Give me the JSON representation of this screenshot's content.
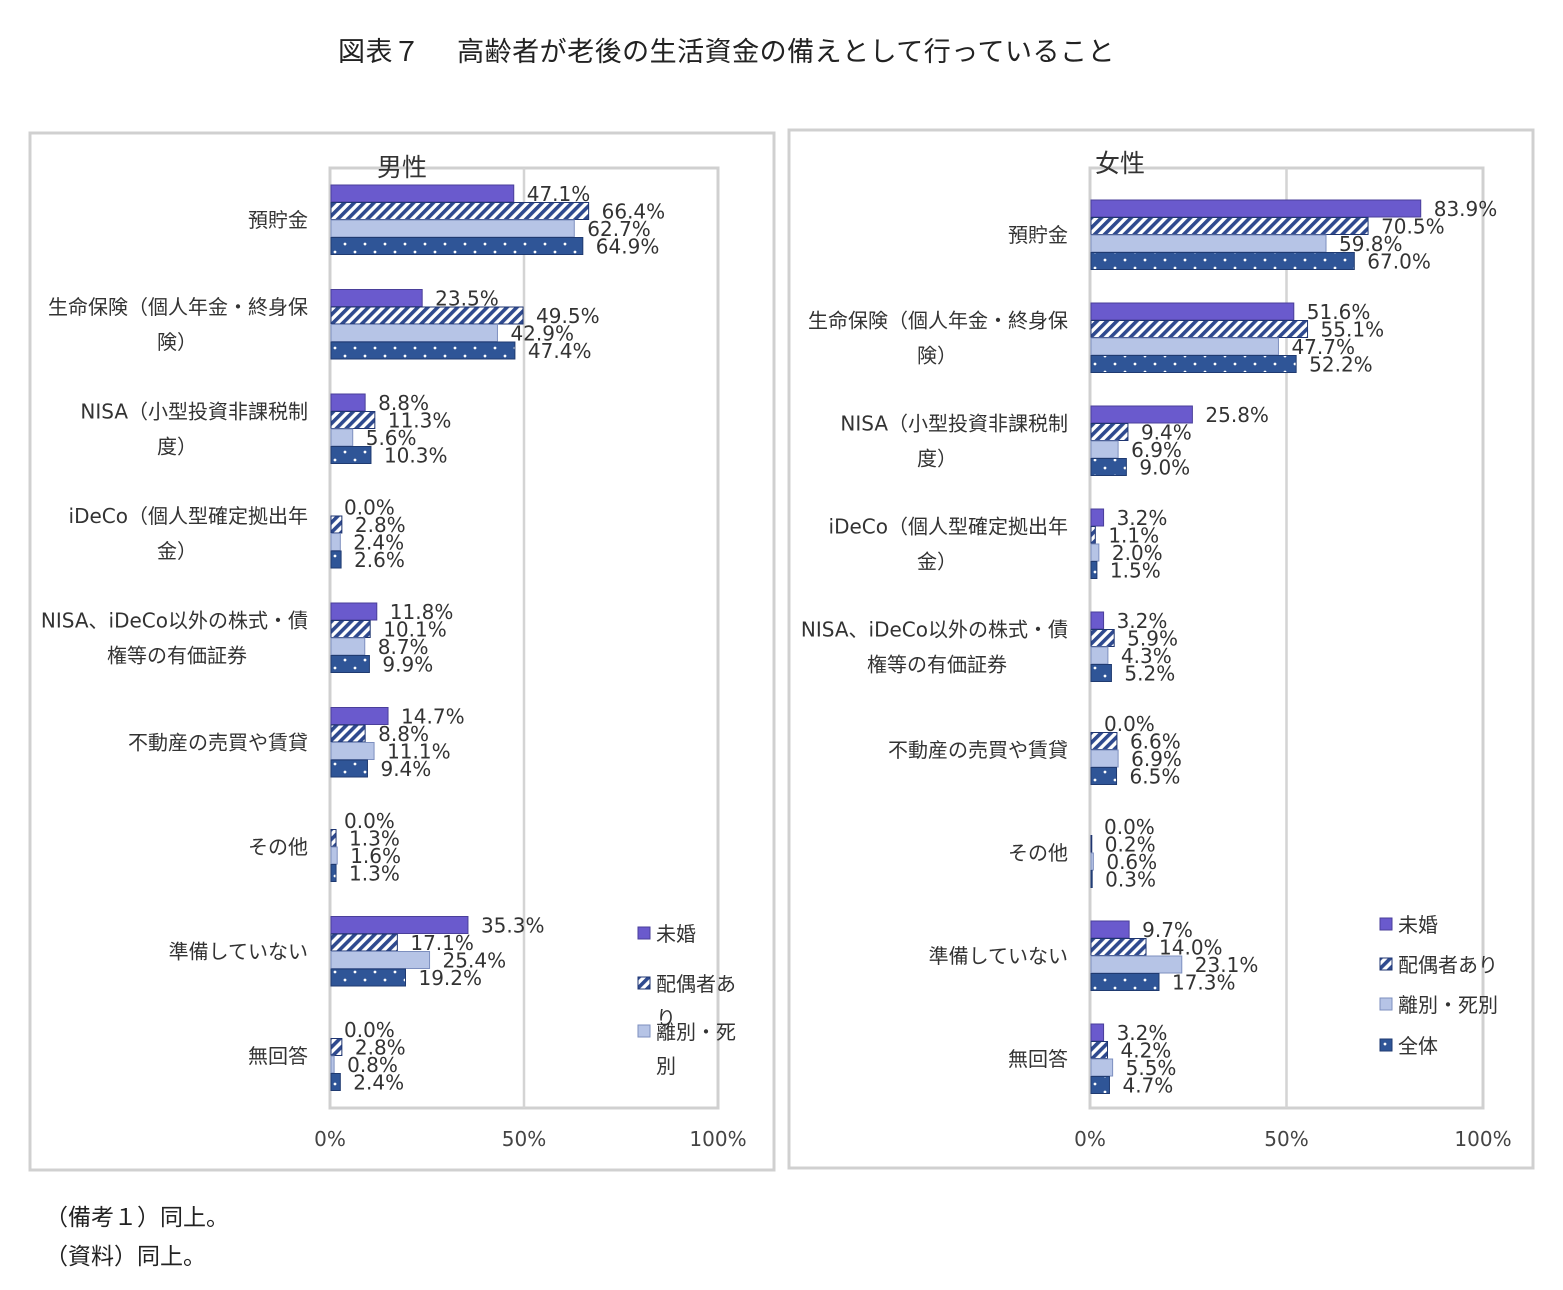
{
  "figure": {
    "title": "図表７　 高齢者が老後の生活資金の備えとして行っていること",
    "notes": [
      "（備考１）同上。",
      "（資料）同上。"
    ]
  },
  "colors": {
    "未婚": "#6a5acd",
    "配偶者あり": "#2f4a8f",
    "離別・死別": "#b6c4e6",
    "全体": "#2f5597",
    "grid": "#d4d4d4",
    "frame": "#d0d0d0"
  },
  "chart_data": [
    {
      "type": "bar",
      "orientation": "horizontal",
      "title": "男性",
      "categories": [
        "預貯金",
        "生命保険（個人年金・終身保険）",
        "NISA（小型投資非課税制度）",
        "iDeCo（個人型確定拠出年金）",
        "NISA、iDeCo以外の株式・債権等の有価証券",
        "不動産の売買や賃貸",
        "その他",
        "準備していない",
        "無回答"
      ],
      "category_lines": [
        [
          "預貯金"
        ],
        [
          "生命保険（個人年金・終身保",
          "険）"
        ],
        [
          "NISA（小型投資非課税制",
          "度）"
        ],
        [
          "iDeCo（個人型確定拠出年",
          "金）"
        ],
        [
          "NISA、iDeCo以外の株式・債",
          "権等の有価証券"
        ],
        [
          "不動産の売買や賃貸"
        ],
        [
          "その他"
        ],
        [
          "準備していない"
        ],
        [
          "無回答"
        ]
      ],
      "series": [
        {
          "name": "未婚",
          "values": [
            47.1,
            23.5,
            8.8,
            0.0,
            11.8,
            14.7,
            0.0,
            35.3,
            0.0
          ]
        },
        {
          "name": "配偶者あり",
          "values": [
            66.4,
            49.5,
            11.3,
            2.8,
            10.1,
            8.8,
            1.3,
            17.1,
            2.8
          ]
        },
        {
          "name": "離別・死別",
          "values": [
            62.7,
            42.9,
            5.6,
            2.4,
            8.7,
            11.1,
            1.6,
            25.4,
            0.8
          ]
        },
        {
          "name": "全体",
          "values": [
            64.9,
            47.4,
            10.3,
            2.6,
            9.9,
            9.4,
            1.3,
            19.2,
            2.4
          ]
        }
      ],
      "legend_lines": [
        [
          "未婚"
        ],
        [
          "配偶者あ",
          "り"
        ],
        [
          "離別・死",
          "別"
        ]
      ],
      "xlim": [
        0,
        100
      ],
      "xticks": [
        "0%",
        "50%",
        "100%"
      ],
      "grid": true,
      "legend_position": "right"
    },
    {
      "type": "bar",
      "orientation": "horizontal",
      "title": "女性",
      "categories": [
        "預貯金",
        "生命保険（個人年金・終身保険）",
        "NISA（小型投資非課税制度）",
        "iDeCo（個人型確定拠出年金）",
        "NISA、iDeCo以外の株式・債権等の有価証券",
        "不動産の売買や賃貸",
        "その他",
        "準備していない",
        "無回答"
      ],
      "category_lines": [
        [
          "預貯金"
        ],
        [
          "生命保険（個人年金・終身保",
          "険）"
        ],
        [
          "NISA（小型投資非課税制",
          "度）"
        ],
        [
          "iDeCo（個人型確定拠出年",
          "金）"
        ],
        [
          "NISA、iDeCo以外の株式・債",
          "権等の有価証券"
        ],
        [
          "不動産の売買や賃貸"
        ],
        [
          "その他"
        ],
        [
          "準備していない"
        ],
        [
          "無回答"
        ]
      ],
      "series": [
        {
          "name": "未婚",
          "values": [
            83.9,
            51.6,
            25.8,
            3.2,
            3.2,
            0.0,
            0.0,
            9.7,
            3.2
          ]
        },
        {
          "name": "配偶者あり",
          "values": [
            70.5,
            55.1,
            9.4,
            1.1,
            5.9,
            6.6,
            0.2,
            14.0,
            4.2
          ]
        },
        {
          "name": "離別・死別",
          "values": [
            59.8,
            47.7,
            6.9,
            2.0,
            4.3,
            6.9,
            0.6,
            23.1,
            5.5
          ]
        },
        {
          "name": "全体",
          "values": [
            67.0,
            52.2,
            9.0,
            1.5,
            5.2,
            6.5,
            0.3,
            17.3,
            4.7
          ]
        }
      ],
      "legend_lines": [
        [
          "未婚"
        ],
        [
          "配偶者あり"
        ],
        [
          "離別・死別"
        ],
        [
          "全体"
        ]
      ],
      "xlim": [
        0,
        100
      ],
      "xticks": [
        "0%",
        "50%",
        "100%"
      ],
      "grid": true,
      "legend_position": "right"
    }
  ]
}
